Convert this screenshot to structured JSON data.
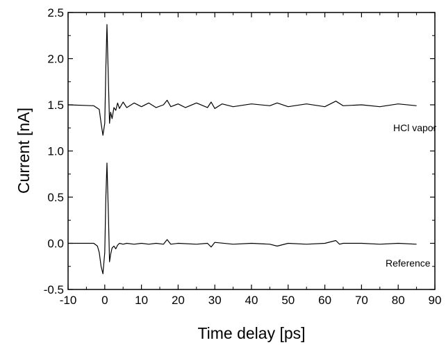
{
  "chart_data": {
    "type": "line",
    "title": "",
    "xlabel": "Time delay [ps]",
    "ylabel": "Current [nA]",
    "xlim": [
      -10,
      90
    ],
    "ylim": [
      -0.5,
      2.5
    ],
    "x_ticks": [
      "-10",
      "0",
      "10",
      "20",
      "30",
      "40",
      "50",
      "60",
      "70",
      "80",
      "90"
    ],
    "y_ticks": [
      "-0.5",
      "0.0",
      "0.5",
      "1.0",
      "1.5",
      "2.0",
      "2.5"
    ],
    "grid": false,
    "series": [
      {
        "name": "HCl vapor",
        "color": "#000000",
        "x": [
          -10,
          -3,
          -1.5,
          -1,
          -0.5,
          0,
          0.3,
          0.6,
          1,
          1.3,
          1.6,
          2,
          2.5,
          3,
          3.5,
          4,
          5,
          6,
          8,
          10,
          12,
          14,
          16,
          17,
          18,
          20,
          22,
          25,
          28,
          29,
          30,
          32,
          35,
          40,
          45,
          47,
          50,
          55,
          60,
          63,
          65,
          70,
          75,
          80,
          85
        ],
        "y": [
          1.5,
          1.49,
          1.45,
          1.3,
          1.17,
          1.3,
          1.9,
          2.37,
          1.75,
          1.3,
          1.42,
          1.35,
          1.47,
          1.44,
          1.52,
          1.46,
          1.53,
          1.47,
          1.52,
          1.48,
          1.52,
          1.47,
          1.5,
          1.55,
          1.48,
          1.51,
          1.47,
          1.52,
          1.47,
          1.53,
          1.46,
          1.51,
          1.48,
          1.51,
          1.49,
          1.52,
          1.48,
          1.51,
          1.48,
          1.54,
          1.49,
          1.5,
          1.48,
          1.51,
          1.49
        ]
      },
      {
        "name": "Reference",
        "color": "#000000",
        "x": [
          -10,
          -3,
          -2,
          -1.5,
          -1,
          -0.5,
          0,
          0.3,
          0.6,
          1,
          1.3,
          1.6,
          2,
          2.5,
          3,
          3.5,
          4,
          5,
          6,
          8,
          10,
          12,
          14,
          16,
          17,
          18,
          20,
          25,
          28,
          29,
          30,
          35,
          40,
          45,
          47,
          50,
          55,
          60,
          63,
          64,
          65,
          70,
          75,
          80,
          85
        ],
        "y": [
          0.0,
          0.0,
          -0.03,
          -0.1,
          -0.25,
          -0.33,
          -0.1,
          0.5,
          0.87,
          0.3,
          -0.2,
          -0.12,
          -0.05,
          -0.03,
          -0.06,
          -0.02,
          0.0,
          -0.01,
          0.0,
          -0.01,
          0.0,
          -0.01,
          0.0,
          -0.01,
          0.04,
          -0.01,
          0.0,
          -0.01,
          0.0,
          -0.04,
          0.01,
          -0.01,
          0.0,
          -0.01,
          -0.03,
          0.0,
          -0.01,
          0.0,
          0.03,
          -0.01,
          0.0,
          0.0,
          -0.01,
          0.0,
          -0.01
        ]
      }
    ]
  }
}
